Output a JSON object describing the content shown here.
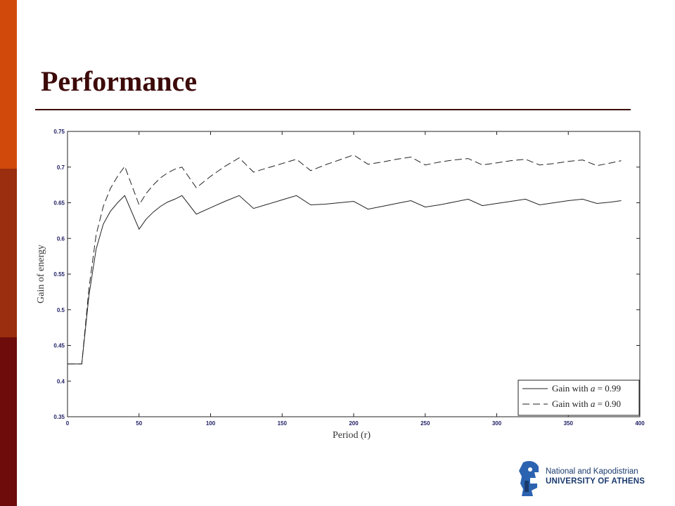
{
  "slide": {
    "title": "Performance",
    "colors": {
      "title": "#3d0a0a",
      "bar_top": "#d14a0b",
      "bar_middle": "#9a2e0e",
      "bar_bottom": "#6e0c0c"
    }
  },
  "logo": {
    "icon": "athena-helmet-icon",
    "line1": "National and Kapodistrian",
    "line2": "UNIVERSITY OF ATHENS",
    "color": "#1a3a6e"
  },
  "chart_data": {
    "type": "line",
    "xlabel": "Period (r)",
    "ylabel": "Gain of energy",
    "xlim": [
      0,
      400
    ],
    "ylim": [
      0.35,
      0.75
    ],
    "xticks": [
      "0",
      "50",
      "100",
      "150",
      "200",
      "250",
      "300",
      "350",
      "400"
    ],
    "yticks": [
      "0.35",
      "0.4",
      "0.45",
      "0.5",
      "0.55",
      "0.6",
      "0.65",
      "0.7",
      "0.75"
    ],
    "grid": false,
    "legend_position": "bottom-right",
    "series": [
      {
        "name": "Gain with a = 0.99",
        "legend_prefix": "Gain with ",
        "legend_var": "a",
        "legend_suffix": " = 0.99",
        "style": "solid",
        "x": [
          0,
          10,
          15,
          20,
          25,
          30,
          35,
          40,
          50,
          55,
          60,
          65,
          70,
          75,
          80,
          90,
          100,
          110,
          120,
          130,
          140,
          150,
          160,
          170,
          180,
          190,
          200,
          210,
          220,
          230,
          240,
          250,
          260,
          270,
          280,
          290,
          300,
          310,
          320,
          330,
          340,
          350,
          360,
          370,
          380,
          387
        ],
        "y": [
          0.424,
          0.424,
          0.52,
          0.585,
          0.62,
          0.638,
          0.65,
          0.66,
          0.613,
          0.627,
          0.637,
          0.645,
          0.651,
          0.655,
          0.66,
          0.634,
          0.643,
          0.652,
          0.66,
          0.642,
          0.648,
          0.654,
          0.66,
          0.647,
          0.648,
          0.65,
          0.652,
          0.641,
          0.645,
          0.649,
          0.653,
          0.644,
          0.647,
          0.651,
          0.655,
          0.646,
          0.649,
          0.652,
          0.655,
          0.647,
          0.65,
          0.653,
          0.655,
          0.649,
          0.651,
          0.653
        ]
      },
      {
        "name": "Gain with a = 0.90",
        "legend_prefix": "Gain with ",
        "legend_var": "a",
        "legend_suffix": " = 0.90",
        "style": "dashed",
        "x": [
          0,
          10,
          15,
          20,
          25,
          30,
          35,
          40,
          50,
          55,
          60,
          65,
          70,
          75,
          80,
          90,
          100,
          110,
          120,
          130,
          140,
          150,
          160,
          170,
          180,
          190,
          200,
          210,
          220,
          230,
          240,
          250,
          260,
          270,
          280,
          290,
          300,
          310,
          320,
          330,
          340,
          350,
          360,
          370,
          380,
          387
        ],
        "y": [
          0.424,
          0.424,
          0.53,
          0.605,
          0.645,
          0.67,
          0.687,
          0.701,
          0.647,
          0.663,
          0.675,
          0.685,
          0.692,
          0.697,
          0.7,
          0.671,
          0.687,
          0.701,
          0.713,
          0.693,
          0.699,
          0.705,
          0.711,
          0.695,
          0.703,
          0.71,
          0.717,
          0.704,
          0.707,
          0.711,
          0.714,
          0.703,
          0.707,
          0.71,
          0.712,
          0.703,
          0.706,
          0.709,
          0.711,
          0.703,
          0.705,
          0.708,
          0.71,
          0.702,
          0.706,
          0.709
        ]
      }
    ]
  }
}
